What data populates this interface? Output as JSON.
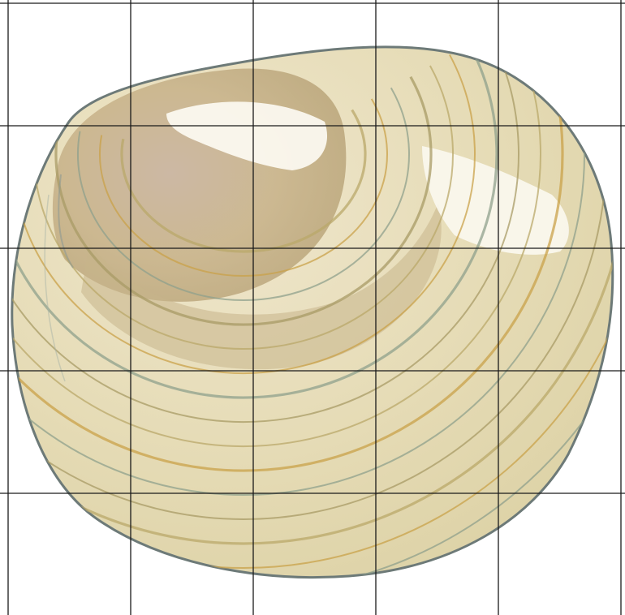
{
  "image": {
    "subject": "clam-shell",
    "style": "watercolor-illustration",
    "background_color": "#ffffff"
  },
  "grid": {
    "columns": 5,
    "rows": 5,
    "line_color": "#1a1a1a"
  },
  "shell": {
    "base_color": "#e9e0c0",
    "outline_color": "#6d7a78",
    "umbo_color": "#c9b48c",
    "highlight_color": "#fbf8ef",
    "ring_colors": [
      "#b9a86a",
      "#c9a24a",
      "#8fa08c",
      "#a89b66"
    ]
  }
}
